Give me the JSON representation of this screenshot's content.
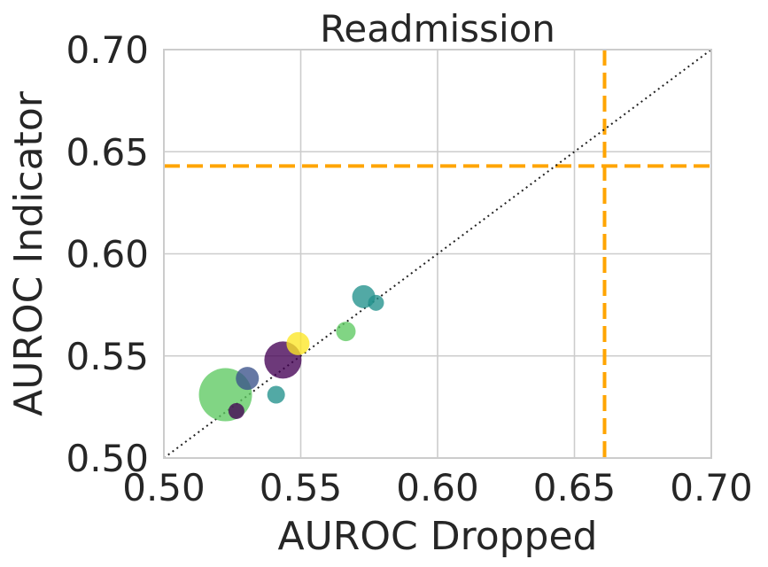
{
  "chart_data": {
    "type": "scatter",
    "title": "Readmission",
    "xlabel": "AUROC Dropped",
    "ylabel": "AUROC Indicator",
    "xlim": [
      0.5,
      0.7
    ],
    "ylim": [
      0.5,
      0.7
    ],
    "xticks": [
      "0.50",
      "0.55",
      "0.60",
      "0.65",
      "0.70"
    ],
    "yticks": [
      "0.50",
      "0.55",
      "0.60",
      "0.65",
      "0.70"
    ],
    "grid": true,
    "diagonal_reference": true,
    "reference_lines": [
      {
        "orientation": "horizontal",
        "value": 0.643,
        "color": "#FFA500"
      },
      {
        "orientation": "vertical",
        "value": 0.661,
        "color": "#FFA500"
      }
    ],
    "points": [
      {
        "x": 0.5225,
        "y": 0.531,
        "size": 30,
        "color": "#5ec962"
      },
      {
        "x": 0.5435,
        "y": 0.548,
        "size": 21,
        "color": "#440154"
      },
      {
        "x": 0.5305,
        "y": 0.539,
        "size": 13,
        "color": "#3b528b"
      },
      {
        "x": 0.549,
        "y": 0.556,
        "size": 13,
        "color": "#fde725"
      },
      {
        "x": 0.573,
        "y": 0.579,
        "size": 13,
        "color": "#21918c"
      },
      {
        "x": 0.5665,
        "y": 0.562,
        "size": 11,
        "color": "#5ec962"
      },
      {
        "x": 0.541,
        "y": 0.531,
        "size": 10,
        "color": "#21918c"
      },
      {
        "x": 0.5775,
        "y": 0.576,
        "size": 9,
        "color": "#21918c"
      },
      {
        "x": 0.5265,
        "y": 0.523,
        "size": 9,
        "color": "#440154"
      }
    ]
  }
}
